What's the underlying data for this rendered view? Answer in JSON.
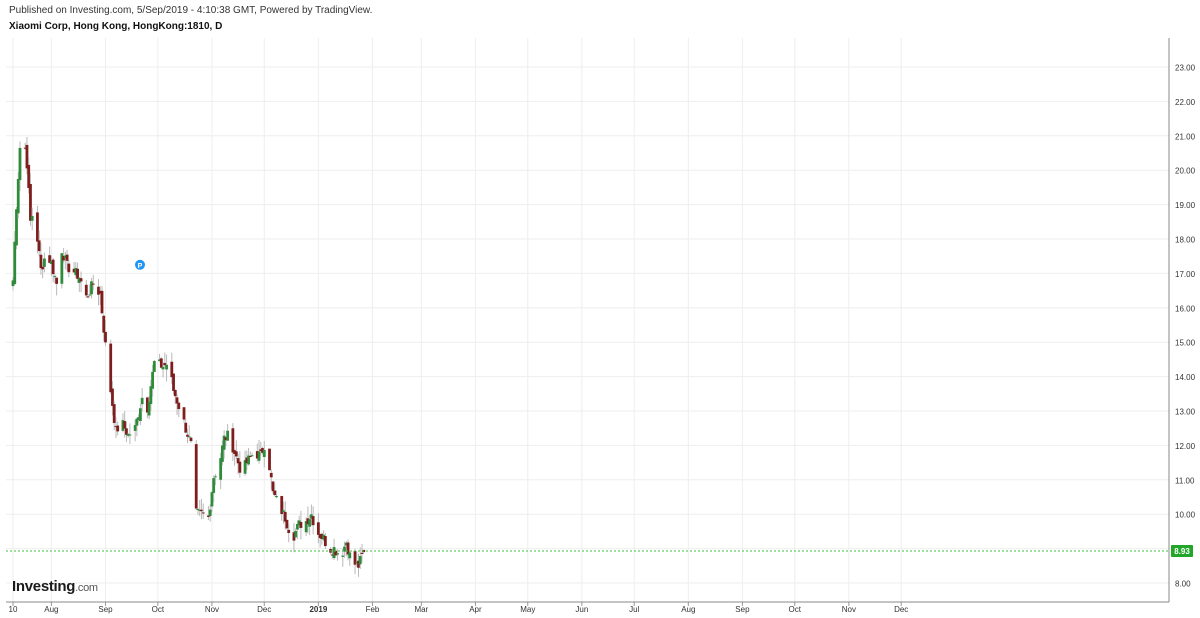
{
  "header": {
    "published": "Published on Investing.com, 5/Sep/2019 - 4:10:38 GMT, Powered by TradingView.",
    "symbol": "Xiaomi Corp, Hong Kong, HongKong:1810, D"
  },
  "logo": {
    "main": "Investing",
    "suffix": ".com"
  },
  "marker": {
    "label": "P",
    "color": "#2196f3"
  },
  "colors": {
    "up": "#2e8b3a",
    "down": "#7f1d1d",
    "last_line": "#3fbf3f",
    "grid": "#eeeeee"
  },
  "chart_data": {
    "type": "candlestick",
    "title": "Xiaomi Corp, Hong Kong, HongKong:1810, D",
    "ylim": [
      7.5,
      23.3
    ],
    "y_ticks": [
      "8.00",
      "9.00",
      "10.00",
      "11.00",
      "12.00",
      "13.00",
      "14.00",
      "15.00",
      "16.00",
      "17.00",
      "18.00",
      "19.00",
      "20.00",
      "21.00",
      "22.00",
      "23.00"
    ],
    "x_ticks": [
      {
        "label": "10",
        "day": 0
      },
      {
        "label": "Aug",
        "day": 22
      },
      {
        "label": "Sep",
        "day": 53
      },
      {
        "label": "Oct",
        "day": 83
      },
      {
        "label": "Nov",
        "day": 114
      },
      {
        "label": "Dec",
        "day": 144
      },
      {
        "label": "2019",
        "day": 175,
        "bold": true
      },
      {
        "label": "Feb",
        "day": 206
      },
      {
        "label": "Mar",
        "day": 234
      },
      {
        "label": "Apr",
        "day": 265
      },
      {
        "label": "May",
        "day": 295
      },
      {
        "label": "Jun",
        "day": 326
      },
      {
        "label": "Jul",
        "day": 356
      },
      {
        "label": "Aug",
        "day": 387
      },
      {
        "label": "Sep",
        "day": 418
      },
      {
        "label": "Oct",
        "day": 448
      },
      {
        "label": "Nov",
        "day": 479
      },
      {
        "label": "Dec",
        "day": 509
      }
    ],
    "last_price": "8.93",
    "path": [
      [
        0,
        16.8
      ],
      [
        2,
        19.0
      ],
      [
        5,
        21.5
      ],
      [
        8,
        20.2
      ],
      [
        10,
        18.5
      ],
      [
        12,
        18.9
      ],
      [
        16,
        17.1
      ],
      [
        19,
        17.6
      ],
      [
        22,
        17.3
      ],
      [
        25,
        16.7
      ],
      [
        28,
        17.7
      ],
      [
        31,
        17.2
      ],
      [
        34,
        17.1
      ],
      [
        38,
        16.9
      ],
      [
        42,
        16.3
      ],
      [
        46,
        16.7
      ],
      [
        50,
        16.4
      ],
      [
        53,
        14.9
      ],
      [
        56,
        13.6
      ],
      [
        59,
        12.4
      ],
      [
        62,
        12.7
      ],
      [
        66,
        12.3
      ],
      [
        70,
        12.5
      ],
      [
        74,
        13.4
      ],
      [
        77,
        13.1
      ],
      [
        81,
        14.4
      ],
      [
        86,
        14.3
      ],
      [
        89,
        14.4
      ],
      [
        92,
        13.6
      ],
      [
        96,
        13.0
      ],
      [
        99,
        12.5
      ],
      [
        102,
        12.0
      ],
      [
        105,
        10.0
      ],
      [
        108,
        10.0
      ],
      [
        112,
        9.9
      ],
      [
        115,
        11.1
      ],
      [
        118,
        11.4
      ],
      [
        121,
        12.2
      ],
      [
        124,
        12.3
      ],
      [
        127,
        11.8
      ],
      [
        131,
        11.2
      ],
      [
        134,
        11.5
      ],
      [
        138,
        11.8
      ],
      [
        142,
        11.7
      ],
      [
        145,
        12.2
      ],
      [
        149,
        10.6
      ],
      [
        152,
        10.3
      ],
      [
        156,
        9.9
      ],
      [
        160,
        9.3
      ],
      [
        164,
        9.7
      ],
      [
        168,
        9.8
      ],
      [
        171,
        10.0
      ],
      [
        174,
        9.5
      ],
      [
        178,
        9.3
      ],
      [
        181,
        9.0
      ],
      [
        184,
        9.0
      ],
      [
        188,
        8.8
      ],
      [
        191,
        9.2
      ],
      [
        194,
        8.6
      ],
      [
        198,
        8.5
      ],
      [
        201,
        8.9
      ]
    ]
  }
}
